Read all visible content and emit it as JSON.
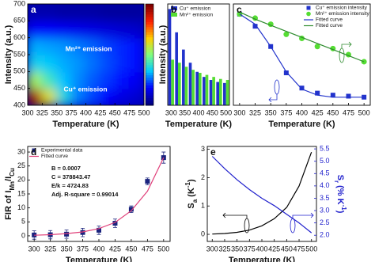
{
  "chart_data": [
    {
      "type": "heatmap",
      "label": "a",
      "xlabel": "Temperature (K)",
      "ylabel": "Intensity (a.u.)",
      "xlim": [
        300,
        500
      ],
      "ylim": [
        400,
        700
      ],
      "xticks": [
        300,
        325,
        350,
        375,
        400,
        425,
        450,
        475,
        500
      ],
      "yticks": [
        400,
        450,
        500,
        550,
        600,
        650,
        700
      ],
      "x": [
        312.5,
        337.5,
        362.5,
        387.5,
        412.5,
        437.5,
        462.5,
        487.5
      ],
      "y": [
        425,
        475,
        525,
        575,
        625,
        675
      ],
      "values": [
        [
          0.95,
          0.62,
          0.38,
          0.27,
          0.22,
          0.17,
          0.13,
          0.11
        ],
        [
          0.55,
          0.42,
          0.33,
          0.28,
          0.24,
          0.21,
          0.18,
          0.15
        ],
        [
          0.36,
          0.34,
          0.31,
          0.29,
          0.26,
          0.23,
          0.2,
          0.18
        ],
        [
          0.31,
          0.3,
          0.29,
          0.27,
          0.25,
          0.22,
          0.2,
          0.18
        ],
        [
          0.16,
          0.16,
          0.15,
          0.14,
          0.13,
          0.12,
          0.11,
          0.1
        ],
        [
          0.06,
          0.06,
          0.05,
          0.05,
          0.05,
          0.04,
          0.04,
          0.04
        ]
      ],
      "colormap": [
        "#00007f",
        "#0000ff",
        "#00c8ff",
        "#7fff7f",
        "#ffd000",
        "#ff2000",
        "#800000"
      ],
      "annotations": [
        "Mn²⁺ emission",
        "Cu⁺ emission"
      ]
    },
    {
      "type": "bar",
      "label": "b",
      "xlabel": "Temperature (K)",
      "ylabel": "Intensity (a.u.)",
      "ylim": [
        0,
        1
      ],
      "categories": [
        "300",
        null,
        "350",
        null,
        "400",
        null,
        "450",
        null,
        "500"
      ],
      "series": [
        {
          "name": "Cu⁺ emission",
          "color": "#2233cc",
          "values": [
            0.95,
            0.72,
            0.55,
            0.42,
            0.33,
            0.28,
            0.25,
            0.23,
            0.22
          ]
        },
        {
          "name": "Mn²⁺ emission",
          "color": "#55dd33",
          "values": [
            0.45,
            0.42,
            0.38,
            0.35,
            0.32,
            0.3,
            0.28,
            0.26,
            0.25
          ]
        }
      ]
    },
    {
      "type": "scatter",
      "label": "c",
      "xlabel": "Temperature (K)",
      "xlim": [
        290,
        510
      ],
      "ylim": [
        0,
        1
      ],
      "xticks": [
        300,
        325,
        350,
        375,
        400,
        425,
        450,
        475,
        500
      ],
      "x": [
        300,
        325,
        350,
        375,
        400,
        425,
        450,
        475,
        500
      ],
      "series": [
        {
          "name": "Cu⁺ emission intensity",
          "color": "#2233cc",
          "marker": "square",
          "values": [
            0.9,
            0.78,
            0.58,
            0.32,
            0.17,
            0.12,
            0.1,
            0.09,
            0.08
          ]
        },
        {
          "name": "Mn²⁺ emission intensity",
          "color": "#55dd33",
          "marker": "circle",
          "values": [
            0.9,
            0.86,
            0.8,
            0.7,
            0.66,
            0.58,
            0.56,
            0.5,
            0.43
          ]
        },
        {
          "name": "Fitted curve",
          "color": "#2233cc",
          "values": [
            0.9,
            0.8,
            0.58,
            0.33,
            0.16,
            0.1,
            0.08,
            0.08,
            0.08
          ]
        },
        {
          "name": "Fitted curve",
          "color": "#2e8b2e",
          "values": [
            0.92,
            0.85,
            0.79,
            0.73,
            0.67,
            0.61,
            0.55,
            0.49,
            0.43
          ]
        }
      ]
    },
    {
      "type": "scatter",
      "label": "d",
      "xlabel": "Temperature (K)",
      "ylabel": [
        {
          "text": "FIR of I"
        },
        {
          "text": "Mn",
          "sub": true
        },
        {
          "text": "/I"
        },
        {
          "text": "Cu",
          "sub": true
        }
      ],
      "xlim": [
        290,
        510
      ],
      "ylim": [
        -2,
        32
      ],
      "xticks": [
        300,
        325,
        350,
        375,
        400,
        425,
        450,
        475,
        500
      ],
      "yticks": [
        0,
        5,
        10,
        15,
        20,
        25,
        30
      ],
      "x": [
        300,
        325,
        350,
        375,
        400,
        425,
        450,
        475,
        500
      ],
      "series": [
        {
          "name": "Experimental data",
          "color": "#1a237e",
          "marker": "square",
          "values": [
            0.3,
            0.4,
            0.6,
            1.2,
            2.0,
            4.5,
            9.5,
            19.5,
            28
          ],
          "errors": [
            1.5,
            1.5,
            1.5,
            1.5,
            1.5,
            1.5,
            1.2,
            1.2,
            2
          ]
        },
        {
          "name": "Fitted curve",
          "color": "#e0407a",
          "values": [
            0.2,
            0.4,
            0.8,
            1.4,
            2.6,
            4.8,
            9,
            16,
            28
          ]
        }
      ],
      "annotations": [
        "B = 0.0007",
        "C = 378843.47",
        "E/k = 4724.83",
        "Adj. R-square = 0.99014"
      ]
    },
    {
      "type": "line",
      "label": "e",
      "xlabel": "Temperature (K)",
      "ylabel": [
        {
          "text": "S"
        },
        {
          "text": "a",
          "sub": true
        },
        {
          "text": " (K"
        },
        {
          "text": "-1",
          "sup": true
        },
        {
          "text": ")"
        }
      ],
      "y2label": [
        {
          "text": "S"
        },
        {
          "text": "r",
          "sub": true
        },
        {
          "text": " (% K"
        },
        {
          "text": "-1",
          "sup": true
        },
        {
          "text": ")"
        }
      ],
      "xlim": [
        290,
        510
      ],
      "ylim": [
        -0.25,
        3.1
      ],
      "y2lim": [
        1.75,
        5.6
      ],
      "xticks": [
        300,
        325,
        350,
        375,
        400,
        425,
        450,
        475,
        500
      ],
      "yticks": [
        0,
        1,
        2,
        3
      ],
      "y2ticks": [
        {
          "value": 2,
          "label": "2.0"
        },
        2.5,
        {
          "value": 3,
          "label": "3.0"
        },
        3.5,
        {
          "value": 4,
          "label": "4.0"
        },
        4.5,
        {
          "value": 5,
          "label": "5.0"
        },
        5.5
      ],
      "y2color": "#1f1fcc",
      "x": [
        300,
        325,
        350,
        375,
        400,
        425,
        450,
        475,
        500
      ],
      "series": [
        {
          "name": "S_a",
          "color": "#000000",
          "values": [
            0.01,
            0.03,
            0.07,
            0.15,
            0.3,
            0.55,
            0.95,
            1.7,
            2.9
          ]
        },
        {
          "name": "S_r",
          "color": "#1f1fcc",
          "axis": "y2",
          "values": [
            5.2,
            4.7,
            4.25,
            3.85,
            3.5,
            3.2,
            2.85,
            2.5,
            2.1
          ]
        }
      ]
    }
  ]
}
